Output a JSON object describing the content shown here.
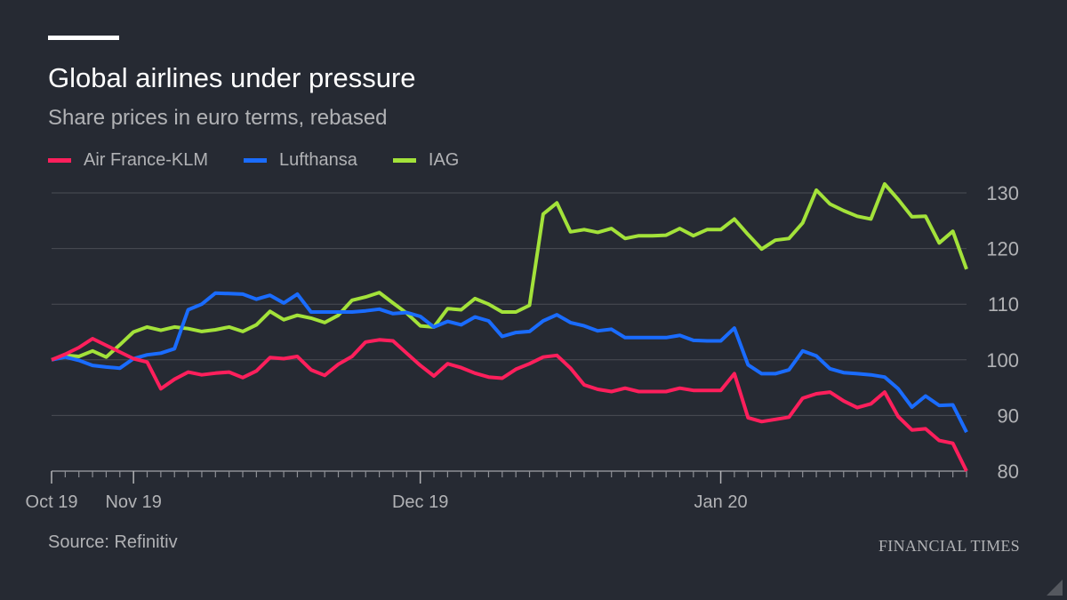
{
  "header": {
    "title": "Global airlines under pressure",
    "subtitle": "Share prices in euro terms, rebased"
  },
  "footer": {
    "source": "Source: Refinitiv",
    "brand": "FINANCIAL TIMES"
  },
  "colors": {
    "background": "#262a33",
    "grid": "#4a4d55",
    "text_muted": "#b1b2b5",
    "air_france_klm": "#ff1f5c",
    "lufthansa": "#1a6cff",
    "iag": "#a3e23a"
  },
  "chart_data": {
    "type": "line",
    "title": "Global airlines under pressure",
    "subtitle": "Share prices in euro terms, rebased",
    "xlabel": "",
    "ylabel": "",
    "ylim": [
      80,
      130
    ],
    "yticks": [
      80,
      90,
      100,
      110,
      120,
      130
    ],
    "ytick_labels": [
      "80",
      "90",
      "100",
      "110",
      "120",
      "130"
    ],
    "y_axis_side": "right",
    "grid": true,
    "legend_position": "top-left",
    "x_tick_labels": [
      {
        "label": "Oct 19",
        "index": 0
      },
      {
        "label": "Nov 19",
        "index": 6
      },
      {
        "label": "Dec 19",
        "index": 27
      },
      {
        "label": "Jan 20",
        "index": 49
      }
    ],
    "n_points": 68,
    "series": [
      {
        "name": "Air France-KLM",
        "color": "#ff1f5c",
        "values": [
          100,
          101,
          102.2,
          103.8,
          102.6,
          101.4,
          100.2,
          99.6,
          94.8,
          96.5,
          97.8,
          97.3,
          97.6,
          97.8,
          96.8,
          98,
          100.4,
          100.2,
          100.6,
          98.2,
          97.2,
          99.2,
          100.6,
          103.2,
          103.6,
          103.4,
          101.2,
          99,
          97.1,
          99.3,
          98.6,
          97.6,
          96.9,
          96.7,
          98.3,
          99.3,
          100.5,
          100.8,
          98.5,
          95.5,
          94.7,
          94.3,
          94.9,
          94.3,
          94.3,
          94.3,
          94.9,
          94.5,
          94.5,
          94.5,
          97.5,
          89.6,
          88.9,
          89.3,
          89.7,
          93.1,
          93.9,
          94.2,
          92.6,
          91.4,
          92.1,
          94.2,
          89.8,
          87.4,
          87.6,
          85.5,
          85,
          80
        ]
      },
      {
        "name": "Lufthansa",
        "color": "#1a6cff",
        "values": [
          100,
          100.5,
          99.9,
          99,
          98.7,
          98.5,
          100.2,
          100.9,
          101.2,
          102,
          109,
          110,
          112,
          111.9,
          111.8,
          110.9,
          111.6,
          110.2,
          111.8,
          108.6,
          108.6,
          108.6,
          108.6,
          108.8,
          109.1,
          108.3,
          108.5,
          107.8,
          105.9,
          106.9,
          106.3,
          107.7,
          107,
          104.2,
          104.9,
          105.1,
          107,
          108.1,
          106.7,
          106.1,
          105.2,
          105.5,
          104,
          104,
          104,
          104,
          104.4,
          103.5,
          103.4,
          103.4,
          105.7,
          99.1,
          97.5,
          97.5,
          98.2,
          101.6,
          100.7,
          98.4,
          97.7,
          97.5,
          97.3,
          96.9,
          94.8,
          91.5,
          93.5,
          91.8,
          91.9,
          87
        ]
      },
      {
        "name": "IAG",
        "color": "#a3e23a",
        "values": [
          100,
          100.8,
          100.6,
          101.6,
          100.5,
          102.7,
          105,
          105.9,
          105.3,
          105.9,
          105.6,
          105.1,
          105.4,
          105.9,
          105.1,
          106.3,
          108.7,
          107.2,
          108,
          107.5,
          106.7,
          108,
          110.7,
          111.3,
          112.1,
          110.2,
          108.4,
          106.1,
          105.9,
          109.2,
          109,
          111,
          110,
          108.6,
          108.6,
          109.8,
          126.2,
          128.2,
          123,
          123.4,
          122.9,
          123.6,
          121.8,
          122.3,
          122.3,
          122.4,
          123.6,
          122.3,
          123.4,
          123.4,
          125.3,
          122.5,
          119.9,
          121.5,
          121.8,
          124.6,
          130.5,
          128,
          126.8,
          125.8,
          125.3,
          131.6,
          128.8,
          125.7,
          125.8,
          121,
          123.1,
          116.3
        ]
      }
    ]
  }
}
